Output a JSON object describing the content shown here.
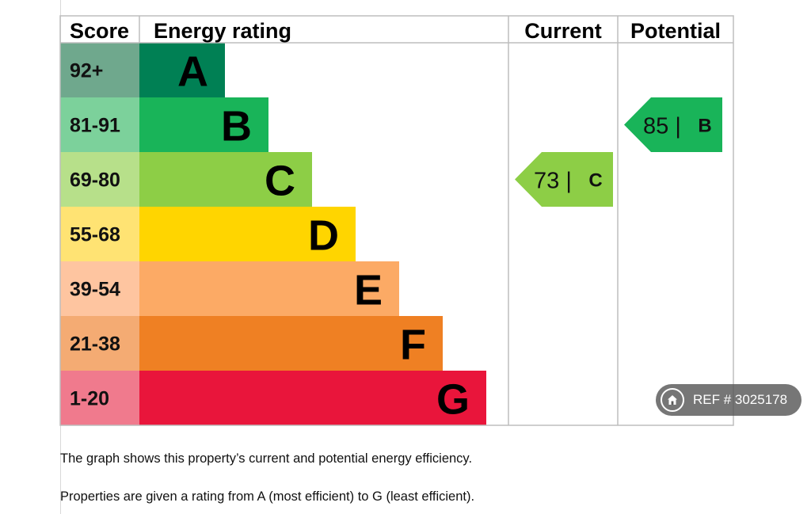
{
  "chart_data": {
    "type": "table",
    "headers": {
      "score": "Score",
      "energy_rating": "Energy rating",
      "current": "Current",
      "potential": "Potential"
    },
    "bands": [
      {
        "letter": "A",
        "range": "92+",
        "color": "#008054",
        "score_color": "#6fa88d"
      },
      {
        "letter": "B",
        "range": "81-91",
        "color": "#19b459",
        "score_color": "#7cd19b"
      },
      {
        "letter": "C",
        "range": "69-80",
        "color": "#8dce46",
        "score_color": "#b7e08a"
      },
      {
        "letter": "D",
        "range": "55-68",
        "color": "#ffd500",
        "score_color": "#ffe373"
      },
      {
        "letter": "E",
        "range": "39-54",
        "color": "#fcaa65",
        "score_color": "#fec5a0"
      },
      {
        "letter": "F",
        "range": "21-38",
        "color": "#ef8023",
        "score_color": "#f4ab73"
      },
      {
        "letter": "G",
        "range": "1-20",
        "color": "#e9153b",
        "score_color": "#f07a8d"
      }
    ],
    "current": {
      "value": 73,
      "band": "C",
      "label": "73 |",
      "color": "#8dce46"
    },
    "potential": {
      "value": 85,
      "band": "B",
      "label": "85 |",
      "color": "#19b459"
    }
  },
  "captions": [
    "The graph shows this property’s current and potential energy efficiency.",
    "Properties are given a rating from A (most efficient) to G (least efficient)."
  ],
  "ref_badge": {
    "text": "REF # 3025178",
    "icon": "home-icon"
  }
}
